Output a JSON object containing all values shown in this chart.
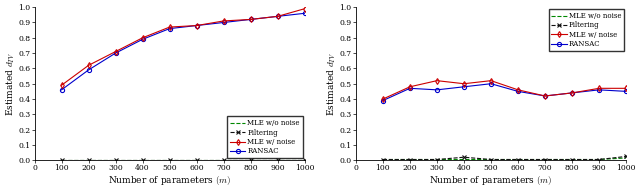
{
  "x": [
    100,
    200,
    300,
    400,
    500,
    600,
    700,
    800,
    900,
    1000
  ],
  "left": {
    "mle_no_noise": [
      0.005,
      0.005,
      0.005,
      0.005,
      0.005,
      0.005,
      0.005,
      0.005,
      0.005,
      0.005
    ],
    "filtering": [
      0.005,
      0.005,
      0.005,
      0.005,
      0.005,
      0.005,
      0.005,
      0.005,
      0.005,
      0.005
    ],
    "mle_w_noise": [
      0.49,
      0.62,
      0.71,
      0.8,
      0.87,
      0.88,
      0.91,
      0.92,
      0.94,
      0.99
    ],
    "ransac": [
      0.46,
      0.59,
      0.7,
      0.79,
      0.86,
      0.88,
      0.9,
      0.92,
      0.94,
      0.96
    ]
  },
  "right": {
    "mle_no_noise": [
      0.005,
      0.005,
      0.005,
      0.005,
      0.005,
      0.005,
      0.005,
      0.005,
      0.005,
      0.015
    ],
    "filtering": [
      0.005,
      0.005,
      0.005,
      0.02,
      0.005,
      0.005,
      0.005,
      0.005,
      0.005,
      0.025
    ],
    "mle_w_noise": [
      0.4,
      0.48,
      0.52,
      0.5,
      0.52,
      0.46,
      0.42,
      0.44,
      0.47,
      0.47
    ],
    "ransac": [
      0.39,
      0.47,
      0.46,
      0.48,
      0.5,
      0.45,
      0.42,
      0.44,
      0.46,
      0.45
    ]
  },
  "mle_no_noise_color": "#008800",
  "filtering_color": "#111111",
  "mle_w_noise_color": "#cc0000",
  "ransac_color": "#0000cc",
  "xlabel": "Number of parameters $(m)$",
  "ylabel": "Estimated $d_{TV}$",
  "legend_labels": [
    "MLE w/o noise",
    "Filtering",
    "MLE w/ noise",
    "RANSAC"
  ],
  "xlim": [
    0,
    1000
  ],
  "ylim": [
    0,
    1.0
  ],
  "xticks": [
    0,
    100,
    200,
    300,
    400,
    500,
    600,
    700,
    800,
    900,
    1000
  ],
  "yticks": [
    0.0,
    0.1,
    0.2,
    0.3,
    0.4,
    0.5,
    0.6,
    0.7,
    0.8,
    0.9,
    1.0
  ],
  "left_legend_loc": "lower right",
  "right_legend_loc": "upper right",
  "fontsize_tick": 5.5,
  "fontsize_label": 6.5,
  "fontsize_legend": 5.0,
  "linewidth": 0.8,
  "markersize": 3.0
}
